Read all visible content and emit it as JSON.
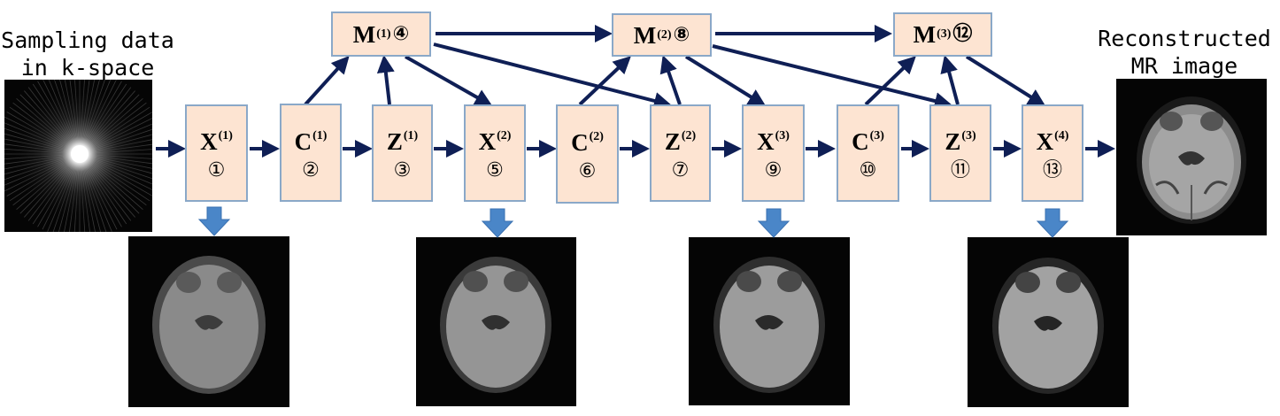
{
  "left_title": [
    "Sampling data",
    "in k-space"
  ],
  "right_title": [
    "Reconstructed",
    "MR image"
  ],
  "modules": [
    {
      "id": "x1",
      "letter": "X",
      "sup": "(1)",
      "num": "①"
    },
    {
      "id": "c1",
      "letter": "C",
      "sup": "(1)",
      "num": "②"
    },
    {
      "id": "z1",
      "letter": "Z",
      "sup": "(1)",
      "num": "③"
    },
    {
      "id": "x2",
      "letter": "X",
      "sup": "(2)",
      "num": "⑤"
    },
    {
      "id": "c2",
      "letter": "C",
      "sup": "(2)",
      "num": "⑥"
    },
    {
      "id": "z2",
      "letter": "Z",
      "sup": "(2)",
      "num": "⑦"
    },
    {
      "id": "x3",
      "letter": "X",
      "sup": "(3)",
      "num": "⑨"
    },
    {
      "id": "c3",
      "letter": "C",
      "sup": "(3)",
      "num": "⑩"
    },
    {
      "id": "z3",
      "letter": "Z",
      "sup": "(3)",
      "num": "⑪"
    },
    {
      "id": "x4",
      "letter": "X",
      "sup": "(4)",
      "num": "⑬"
    }
  ],
  "multipliers": [
    {
      "id": "m1",
      "letter": "M",
      "sup": "(1)",
      "num": "④"
    },
    {
      "id": "m2",
      "letter": "M",
      "sup": "(2)",
      "num": "⑧"
    },
    {
      "id": "m3",
      "letter": "M",
      "sup": "(3)",
      "num": "⑫"
    }
  ],
  "colors": {
    "box_fill": "#fde4d2",
    "box_border": "#8aa8c8",
    "flow_arrow": "#0f1f55",
    "down_arrow": "#4a86c8"
  }
}
